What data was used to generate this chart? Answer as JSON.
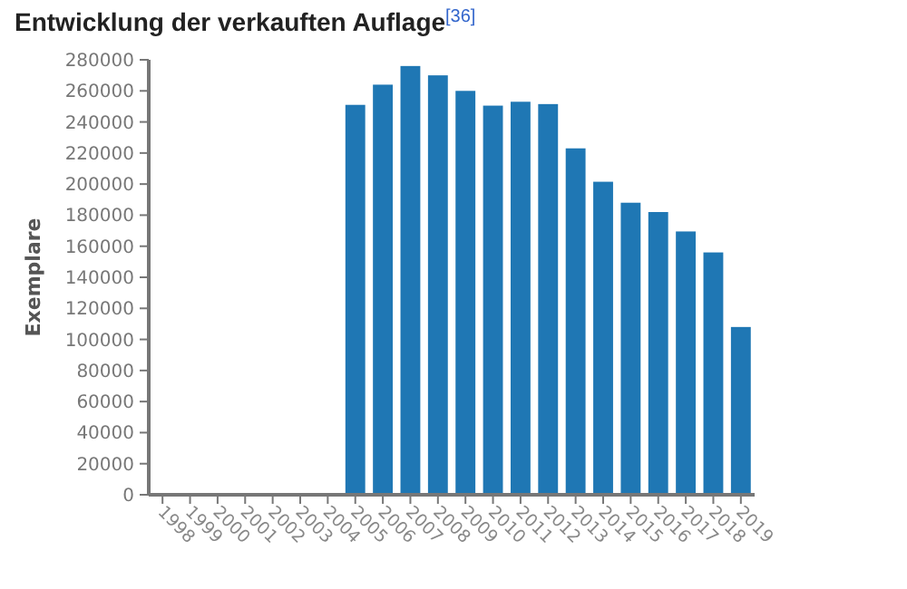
{
  "chart_data": {
    "type": "bar",
    "title": "Entwicklung der verkauften Auflage$^{[36]}$",
    "ylabel": "Exemplare",
    "categories": [
      "1998",
      "1999",
      "2000",
      "2001",
      "2002",
      "2003",
      "2004",
      "2005",
      "2006",
      "2007",
      "2008",
      "2009",
      "2010",
      "2011",
      "2012",
      "2013",
      "2014",
      "2015",
      "2016",
      "2017",
      "2018",
      "2019"
    ],
    "values": [
      null,
      null,
      null,
      null,
      null,
      null,
      null,
      251000,
      264000,
      276000,
      270000,
      260000,
      250500,
      253000,
      251500,
      223000,
      201500,
      188000,
      182000,
      169500,
      156000,
      108000
    ],
    "color": "#1f77b4",
    "ylim": [
      0,
      280000
    ],
    "yticks": [
      0,
      20000,
      40000,
      60000,
      80000,
      100000,
      120000,
      140000,
      160000,
      180000,
      200000,
      220000,
      240000,
      260000,
      280000
    ],
    "grid": false
  }
}
